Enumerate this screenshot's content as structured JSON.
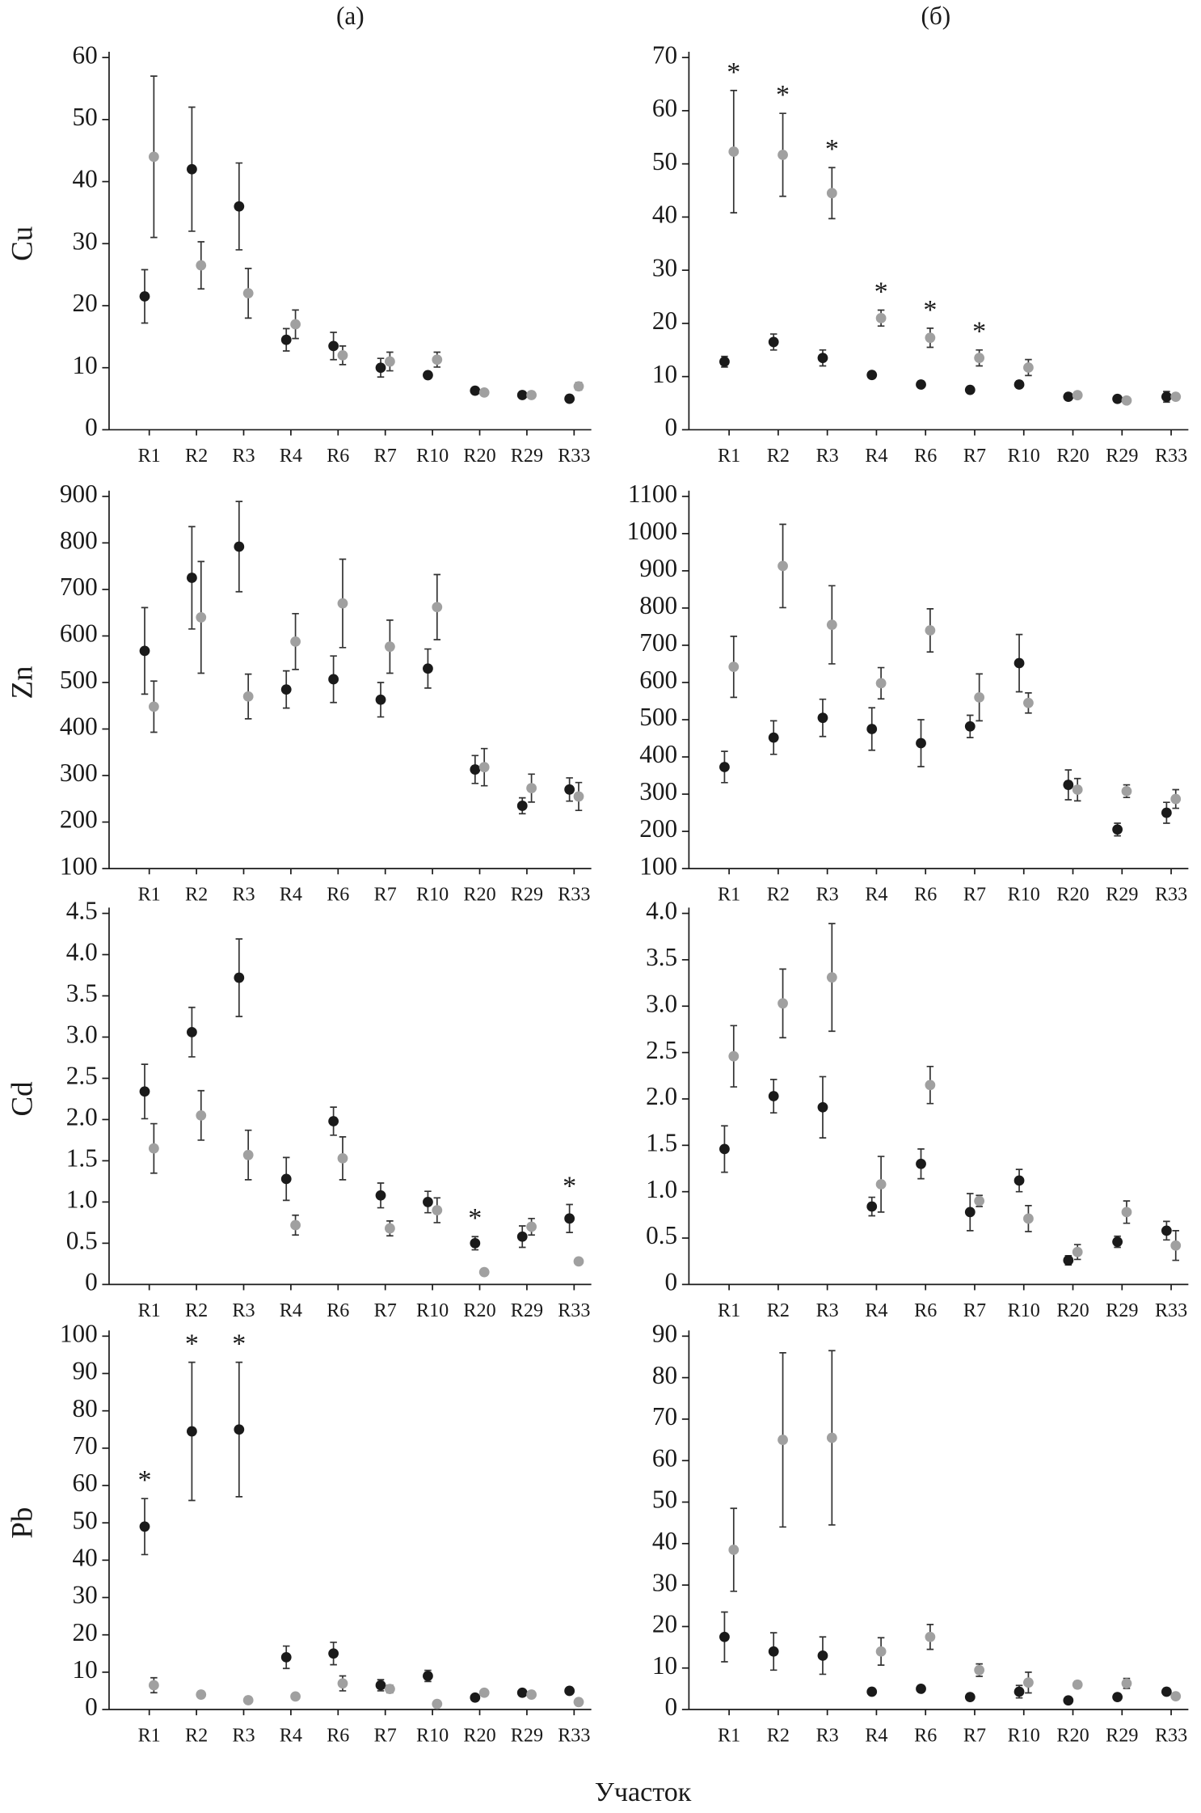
{
  "column_labels": [
    "(а)",
    "(б)"
  ],
  "x_label": "Участок",
  "chart_data": [
    {
      "type": "scatter",
      "y_label": "Cu",
      "categories": [
        "R1",
        "R2",
        "R3",
        "R4",
        "R6",
        "R7",
        "R10",
        "R20",
        "R29",
        "R33"
      ],
      "ylim": [
        0,
        60
      ],
      "yticks": [
        0,
        10,
        20,
        30,
        40,
        50,
        60
      ],
      "series": [
        {
          "color": "#1a1a1a",
          "values": [
            21.5,
            42,
            36,
            14.5,
            13.5,
            10,
            8.8,
            6.3,
            5.6,
            5
          ],
          "errors": [
            4.3,
            10,
            7,
            1.8,
            2.2,
            1.5,
            0.5,
            0.3,
            0.3,
            0.3
          ]
        },
        {
          "color": "#a0a0a0",
          "values": [
            44,
            26.5,
            22,
            17,
            12,
            11,
            11.3,
            6,
            5.6,
            7
          ],
          "errors": [
            13,
            3.8,
            4,
            2.3,
            1.5,
            1.5,
            1.2,
            0.3,
            0.3,
            0.6
          ]
        }
      ]
    },
    {
      "type": "scatter",
      "categories": [
        "R1",
        "R2",
        "R3",
        "R4",
        "R6",
        "R7",
        "R10",
        "R20",
        "R29",
        "R33"
      ],
      "ylim": [
        0,
        70
      ],
      "yticks": [
        0,
        10,
        20,
        30,
        40,
        50,
        60,
        70
      ],
      "series": [
        {
          "color": "#1a1a1a",
          "values": [
            12.8,
            16.5,
            13.5,
            10.3,
            8.5,
            7.5,
            8.5,
            6.2,
            5.8,
            6.2
          ],
          "errors": [
            1,
            1.5,
            1.5,
            0.3,
            0.3,
            0.3,
            0.5,
            0.3,
            0.3,
            1
          ]
        },
        {
          "color": "#a0a0a0",
          "values": [
            52.3,
            51.7,
            44.5,
            21,
            17.3,
            13.5,
            11.7,
            6.5,
            5.5,
            6.2
          ],
          "errors": [
            11.5,
            7.8,
            4.8,
            1.5,
            1.8,
            1.5,
            1.5,
            0.3,
            0.3,
            0.3
          ],
          "annotations": [
            "*",
            "*",
            "*",
            "*",
            "*",
            "*",
            null,
            null,
            null,
            null
          ]
        }
      ]
    },
    {
      "type": "scatter",
      "y_label": "Zn",
      "categories": [
        "R1",
        "R2",
        "R3",
        "R4",
        "R6",
        "R7",
        "R10",
        "R20",
        "R29",
        "R33"
      ],
      "ylim": [
        100,
        900
      ],
      "yticks": [
        100,
        200,
        300,
        400,
        500,
        600,
        700,
        800,
        900
      ],
      "series": [
        {
          "color": "#1a1a1a",
          "values": [
            568,
            725,
            792,
            485,
            507,
            463,
            530,
            313,
            235,
            270
          ],
          "errors": [
            93,
            110,
            97,
            40,
            50,
            37,
            42,
            30,
            17,
            25
          ]
        },
        {
          "color": "#a0a0a0",
          "values": [
            448,
            640,
            470,
            588,
            670,
            577,
            662,
            318,
            273,
            255
          ],
          "errors": [
            55,
            120,
            48,
            60,
            95,
            57,
            70,
            40,
            30,
            30
          ]
        }
      ]
    },
    {
      "type": "scatter",
      "categories": [
        "R1",
        "R2",
        "R3",
        "R4",
        "R6",
        "R7",
        "R10",
        "R20",
        "R29",
        "R33"
      ],
      "ylim": [
        100,
        1100
      ],
      "yticks": [
        100,
        200,
        300,
        400,
        500,
        600,
        700,
        800,
        900,
        1000,
        1100
      ],
      "series": [
        {
          "color": "#1a1a1a",
          "values": [
            373,
            452,
            505,
            475,
            437,
            482,
            652,
            325,
            205,
            250
          ],
          "errors": [
            42,
            45,
            50,
            57,
            63,
            30,
            77,
            40,
            17,
            28
          ]
        },
        {
          "color": "#a0a0a0",
          "values": [
            642,
            913,
            755,
            598,
            740,
            560,
            545,
            312,
            308,
            287
          ],
          "errors": [
            82,
            112,
            105,
            42,
            58,
            63,
            27,
            30,
            17,
            25
          ]
        }
      ]
    },
    {
      "type": "scatter",
      "y_label": "Cd",
      "categories": [
        "R1",
        "R2",
        "R3",
        "R4",
        "R6",
        "R7",
        "R10",
        "R20",
        "R29",
        "R33"
      ],
      "ylim": [
        0,
        4.5
      ],
      "yticks": [
        0,
        0.5,
        {
          "value": 1,
          "label": "1.0"
        },
        1.5,
        {
          "value": 2,
          "label": "2.0"
        },
        2.5,
        {
          "value": 3,
          "label": "3.0"
        },
        3.5,
        {
          "value": 4,
          "label": "4.0"
        },
        4.5
      ],
      "series": [
        {
          "color": "#1a1a1a",
          "values": [
            2.34,
            3.06,
            3.72,
            1.28,
            1.98,
            1.08,
            1.0,
            0.5,
            0.58,
            0.8
          ],
          "errors": [
            0.33,
            0.3,
            0.47,
            0.26,
            0.17,
            0.15,
            0.13,
            0.08,
            0.13,
            0.17
          ],
          "annotations": [
            null,
            null,
            null,
            null,
            null,
            null,
            null,
            "*",
            null,
            "*"
          ]
        },
        {
          "color": "#a0a0a0",
          "values": [
            1.65,
            2.05,
            1.57,
            0.72,
            1.53,
            0.68,
            0.9,
            0.15,
            0.7,
            0.28
          ],
          "errors": [
            0.3,
            0.3,
            0.3,
            0.12,
            0.26,
            0.09,
            0.15,
            0.03,
            0.1,
            0.03
          ]
        }
      ]
    },
    {
      "type": "scatter",
      "categories": [
        "R1",
        "R2",
        "R3",
        "R4",
        "R6",
        "R7",
        "R10",
        "R20",
        "R29",
        "R33"
      ],
      "ylim": [
        0,
        4
      ],
      "yticks": [
        0,
        0.5,
        {
          "value": 1,
          "label": "1.0"
        },
        1.5,
        {
          "value": 2,
          "label": "2.0"
        },
        2.5,
        {
          "value": 3,
          "label": "3.0"
        },
        3.5,
        {
          "value": 4,
          "label": "4.0"
        }
      ],
      "series": [
        {
          "color": "#1a1a1a",
          "values": [
            1.46,
            2.03,
            1.91,
            0.84,
            1.3,
            0.78,
            1.12,
            0.26,
            0.46,
            0.58
          ],
          "errors": [
            0.25,
            0.18,
            0.33,
            0.1,
            0.16,
            0.2,
            0.12,
            0.05,
            0.06,
            0.1
          ]
        },
        {
          "color": "#a0a0a0",
          "values": [
            2.46,
            3.03,
            3.31,
            1.08,
            2.15,
            0.9,
            0.71,
            0.35,
            0.78,
            0.42
          ],
          "errors": [
            0.33,
            0.37,
            0.58,
            0.3,
            0.2,
            0.06,
            0.14,
            0.08,
            0.12,
            0.16
          ]
        }
      ]
    },
    {
      "type": "scatter",
      "y_label": "Pb",
      "categories": [
        "R1",
        "R2",
        "R3",
        "R4",
        "R6",
        "R7",
        "R10",
        "R20",
        "R29",
        "R33"
      ],
      "ylim": [
        0,
        100
      ],
      "yticks": [
        0,
        10,
        20,
        30,
        40,
        50,
        60,
        70,
        80,
        90,
        100
      ],
      "series": [
        {
          "color": "#1a1a1a",
          "values": [
            49,
            74.5,
            75,
            14,
            15,
            6.5,
            9,
            3.2,
            4.5,
            5
          ],
          "errors": [
            7.5,
            18.5,
            18,
            3,
            3,
            1.5,
            1.5,
            0.5,
            0.5,
            0.5
          ],
          "annotations": [
            "*",
            "*",
            "*",
            null,
            null,
            null,
            null,
            null,
            null,
            null
          ]
        },
        {
          "color": "#a0a0a0",
          "values": [
            6.5,
            4,
            2.5,
            3.5,
            7,
            5.5,
            1.5,
            4.5,
            4,
            2
          ],
          "errors": [
            2,
            0.5,
            0.5,
            0.5,
            2,
            1,
            0.5,
            0.5,
            0.5,
            0.3
          ]
        }
      ]
    },
    {
      "type": "scatter",
      "categories": [
        "R1",
        "R2",
        "R3",
        "R4",
        "R6",
        "R7",
        "R10",
        "R20",
        "R29",
        "R33"
      ],
      "ylim": [
        0,
        90
      ],
      "yticks": [
        0,
        10,
        20,
        30,
        40,
        50,
        60,
        70,
        80,
        90
      ],
      "series": [
        {
          "color": "#1a1a1a",
          "values": [
            17.5,
            14,
            13,
            4.3,
            5,
            3,
            4.3,
            2.2,
            3,
            4.3
          ],
          "errors": [
            6,
            4.5,
            4.5,
            0.5,
            0.5,
            0.3,
            1.5,
            0.3,
            0.3,
            0.5
          ]
        },
        {
          "color": "#a0a0a0",
          "values": [
            38.5,
            65,
            65.5,
            14,
            17.5,
            9.5,
            6.5,
            6,
            6.3,
            3.2
          ],
          "errors": [
            10,
            21,
            21,
            3.3,
            3,
            1.5,
            2.5,
            0.8,
            1.2,
            0.3
          ]
        }
      ]
    }
  ]
}
